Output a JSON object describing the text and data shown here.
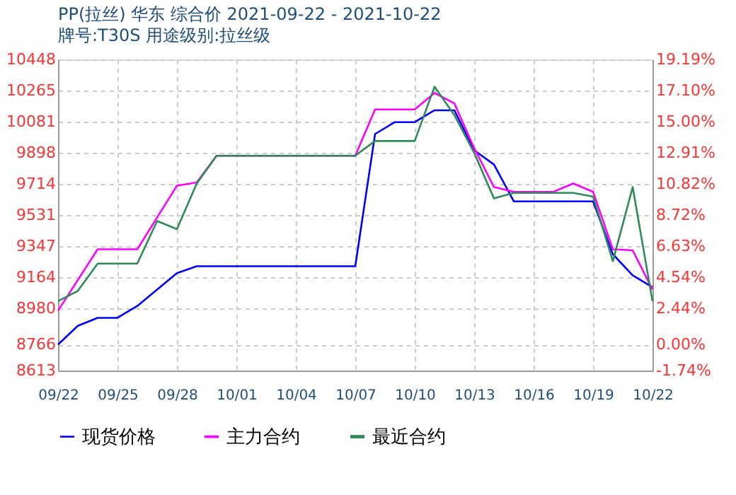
{
  "chart_data": {
    "type": "line",
    "title": "PP(拉丝) 华东 综合价 2021-09-22 - 2021-10-22",
    "subtitle": "牌号:T30S 用途级别:拉丝级",
    "ylim": [
      8613,
      10448
    ],
    "yticks": [
      8613,
      8766,
      8980,
      9164,
      9347,
      9531,
      9714,
      9898,
      10081,
      10265,
      10448
    ],
    "y2lim": [
      -1.74,
      19.19
    ],
    "y2ticks": [
      {
        "value": -1.74,
        "label": "-1.74%"
      },
      {
        "value": 0,
        "label": "0.00%"
      },
      {
        "value": 2.44,
        "label": "2.44%"
      },
      {
        "value": 4.54,
        "label": "4.54%"
      },
      {
        "value": 6.63,
        "label": "6.63%"
      },
      {
        "value": 8.72,
        "label": "8.72%"
      },
      {
        "value": 10.82,
        "label": "10.82%"
      },
      {
        "value": 12.91,
        "label": "12.91%"
      },
      {
        "value": 15.0,
        "label": "15.00%"
      },
      {
        "value": 17.1,
        "label": "17.10%"
      },
      {
        "value": 19.19,
        "label": "19.19%"
      }
    ],
    "xlim": [
      "2021-09-22",
      "2021-10-22"
    ],
    "xticks": [
      {
        "value": "2021-09-22",
        "label": "09/22"
      },
      {
        "value": "2021-09-25",
        "label": "09/25"
      },
      {
        "value": "2021-09-28",
        "label": "09/28"
      },
      {
        "value": "2021-10-01",
        "label": "10/01"
      },
      {
        "value": "2021-10-04",
        "label": "10/04"
      },
      {
        "value": "2021-10-07",
        "label": "10/07"
      },
      {
        "value": "2021-10-10",
        "label": "10/10"
      },
      {
        "value": "2021-10-13",
        "label": "10/13"
      },
      {
        "value": "2021-10-16",
        "label": "10/16"
      },
      {
        "value": "2021-10-19",
        "label": "10/19"
      },
      {
        "value": "2021-10-22",
        "label": "10/22"
      }
    ],
    "grid": true,
    "legend": "bottom",
    "line_style": "solid",
    "series": [
      {
        "name": "现货价格",
        "color": "#0000ff",
        "x": [
          "2021-09-22",
          "2021-09-23",
          "2021-09-24",
          "2021-09-25",
          "2021-09-26",
          "2021-09-27",
          "2021-09-28",
          "2021-09-29",
          "2021-10-07",
          "2021-10-08",
          "2021-10-09",
          "2021-10-10",
          "2021-10-11",
          "2021-10-12",
          "2021-10-13",
          "2021-10-14",
          "2021-10-15",
          "2021-10-19",
          "2021-10-20",
          "2021-10-21",
          "2021-10-22"
        ],
        "values": [
          8766,
          8877,
          8924,
          8924,
          8994,
          9091,
          9188,
          9228,
          9228,
          10008,
          10078,
          10078,
          10148,
          10148,
          9912,
          9828,
          9611,
          9611,
          9299,
          9174,
          9105
        ]
      },
      {
        "name": "主力合约",
        "color": "#ff00ff",
        "x": [
          "2021-09-22",
          "2021-09-24",
          "2021-09-26",
          "2021-09-28",
          "2021-09-29",
          "2021-09-30",
          "2021-10-07",
          "2021-10-08",
          "2021-10-10",
          "2021-10-11",
          "2021-10-12",
          "2021-10-13",
          "2021-10-14",
          "2021-10-15",
          "2021-10-17",
          "2021-10-18",
          "2021-10-19",
          "2021-10-20",
          "2021-10-21",
          "2021-10-22"
        ],
        "values": [
          8966,
          9328,
          9328,
          9703,
          9722,
          9880,
          9880,
          10153,
          10153,
          10250,
          10189,
          9925,
          9695,
          9667,
          9667,
          9716,
          9667,
          9328,
          9322,
          9091
        ]
      },
      {
        "name": "最近合约",
        "color": "#2e8b57",
        "x": [
          "2021-09-22",
          "2021-09-23",
          "2021-09-24",
          "2021-09-26",
          "2021-09-27",
          "2021-09-28",
          "2021-09-29",
          "2021-09-30",
          "2021-10-07",
          "2021-10-08",
          "2021-10-10",
          "2021-10-11",
          "2021-10-12",
          "2021-10-13",
          "2021-10-14",
          "2021-10-15",
          "2021-10-18",
          "2021-10-19",
          "2021-10-20",
          "2021-10-21",
          "2021-10-22"
        ],
        "values": [
          9022,
          9083,
          9244,
          9244,
          9495,
          9447,
          9716,
          9880,
          9880,
          9967,
          9967,
          10287,
          10120,
          9897,
          9628,
          9661,
          9661,
          9639,
          9258,
          9695,
          9022
        ]
      }
    ]
  }
}
